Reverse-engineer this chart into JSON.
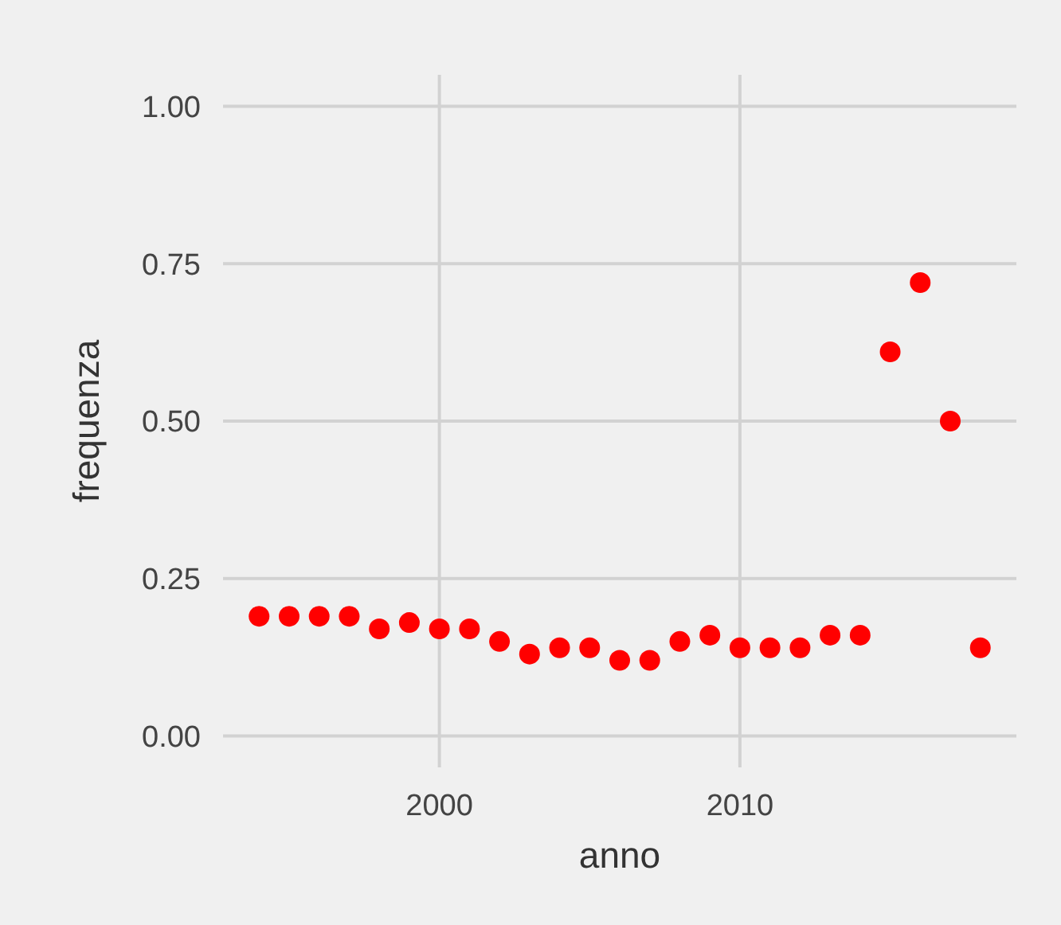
{
  "chart_data": {
    "type": "scatter",
    "xlabel": "anno",
    "ylabel": "frequenza",
    "x": [
      1994,
      1995,
      1996,
      1997,
      1998,
      1999,
      2000,
      2001,
      2002,
      2003,
      2004,
      2005,
      2006,
      2007,
      2008,
      2009,
      2010,
      2011,
      2012,
      2013,
      2014,
      2015,
      2016,
      2017,
      2018
    ],
    "series": [
      {
        "color": "#ff0000",
        "values": [
          0.19,
          0.19,
          0.19,
          0.19,
          0.17,
          0.18,
          0.17,
          0.17,
          0.15,
          0.13,
          0.14,
          0.14,
          0.12,
          0.12,
          0.15,
          0.16,
          0.14,
          0.14,
          0.14,
          0.16,
          0.16,
          0.61,
          0.72,
          0.5,
          0.14
        ]
      }
    ],
    "xlim": [
      1992.8,
      2019.2
    ],
    "xticks": [
      2000,
      2010
    ],
    "ylim": [
      -0.05,
      1.05
    ],
    "yticks": [
      {
        "value": 0,
        "label": "0.00"
      },
      {
        "value": 0.25,
        "label": "0.25"
      },
      {
        "value": 0.5,
        "label": "0.50"
      },
      {
        "value": 0.75,
        "label": "0.75"
      },
      {
        "value": 1,
        "label": "1.00"
      }
    ],
    "grid": true,
    "marker": "circle"
  }
}
